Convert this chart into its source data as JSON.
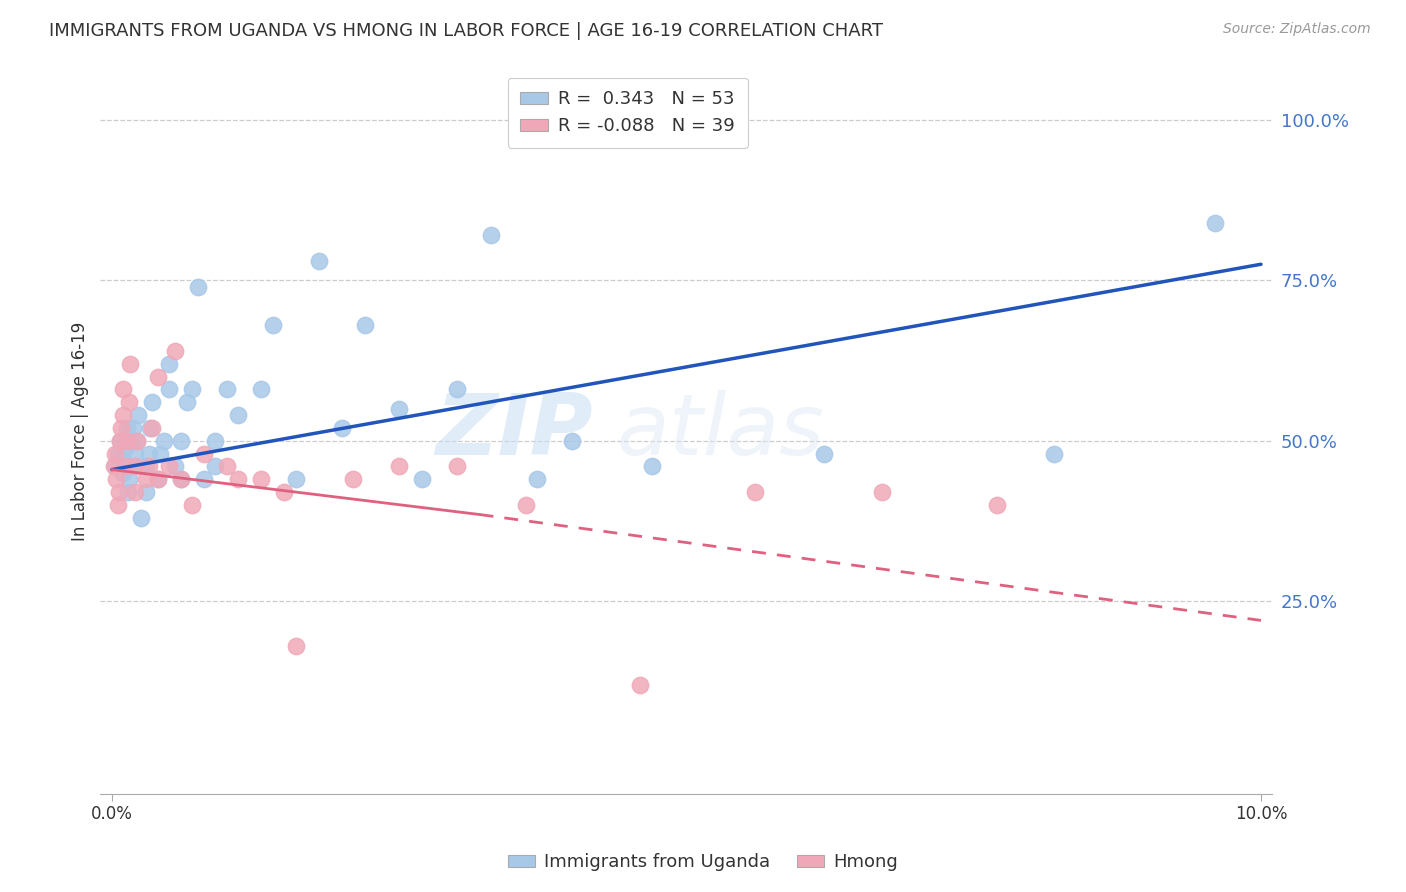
{
  "title": "IMMIGRANTS FROM UGANDA VS HMONG IN LABOR FORCE | AGE 16-19 CORRELATION CHART",
  "source": "Source: ZipAtlas.com",
  "ylabel": "In Labor Force | Age 16-19",
  "y_tick_labels": [
    "25.0%",
    "50.0%",
    "75.0%",
    "100.0%"
  ],
  "y_ticks": [
    0.25,
    0.5,
    0.75,
    1.0
  ],
  "xlim": [
    -0.001,
    0.101
  ],
  "ylim": [
    -0.05,
    1.08
  ],
  "uganda_color": "#a8c8e8",
  "hmong_color": "#f0a8b8",
  "uganda_line_color": "#2255bb",
  "hmong_line_color": "#e06080",
  "watermark_zip": "ZIP",
  "watermark_atlas": "atlas",
  "background_color": "#ffffff",
  "grid_color": "#cccccc",
  "uganda_x": [
    0.0003,
    0.0005,
    0.0007,
    0.001,
    0.001,
    0.0012,
    0.0013,
    0.0014,
    0.0015,
    0.0016,
    0.0018,
    0.002,
    0.002,
    0.0022,
    0.0023,
    0.0025,
    0.003,
    0.003,
    0.0032,
    0.0033,
    0.0035,
    0.004,
    0.0042,
    0.0045,
    0.005,
    0.005,
    0.0055,
    0.006,
    0.006,
    0.0065,
    0.007,
    0.0075,
    0.008,
    0.009,
    0.009,
    0.01,
    0.011,
    0.013,
    0.014,
    0.016,
    0.018,
    0.02,
    0.022,
    0.025,
    0.027,
    0.03,
    0.033,
    0.037,
    0.04,
    0.047,
    0.062,
    0.082,
    0.096
  ],
  "uganda_y": [
    0.46,
    0.48,
    0.5,
    0.45,
    0.47,
    0.49,
    0.52,
    0.42,
    0.44,
    0.5,
    0.52,
    0.46,
    0.48,
    0.5,
    0.54,
    0.38,
    0.42,
    0.46,
    0.48,
    0.52,
    0.56,
    0.44,
    0.48,
    0.5,
    0.58,
    0.62,
    0.46,
    0.44,
    0.5,
    0.56,
    0.58,
    0.74,
    0.44,
    0.5,
    0.46,
    0.58,
    0.54,
    0.58,
    0.68,
    0.44,
    0.78,
    0.52,
    0.68,
    0.55,
    0.44,
    0.58,
    0.82,
    0.44,
    0.5,
    0.46,
    0.48,
    0.48,
    0.84
  ],
  "hmong_x": [
    0.0002,
    0.0003,
    0.0004,
    0.0005,
    0.0006,
    0.0007,
    0.0008,
    0.001,
    0.001,
    0.0012,
    0.0013,
    0.0015,
    0.0016,
    0.002,
    0.002,
    0.0022,
    0.003,
    0.0032,
    0.0035,
    0.004,
    0.004,
    0.005,
    0.0055,
    0.006,
    0.007,
    0.008,
    0.01,
    0.011,
    0.013,
    0.015,
    0.016,
    0.021,
    0.025,
    0.03,
    0.036,
    0.046,
    0.056,
    0.067,
    0.077
  ],
  "hmong_y": [
    0.46,
    0.48,
    0.44,
    0.4,
    0.42,
    0.5,
    0.52,
    0.54,
    0.58,
    0.46,
    0.5,
    0.56,
    0.62,
    0.42,
    0.46,
    0.5,
    0.44,
    0.46,
    0.52,
    0.44,
    0.6,
    0.46,
    0.64,
    0.44,
    0.4,
    0.48,
    0.46,
    0.44,
    0.44,
    0.42,
    0.18,
    0.44,
    0.46,
    0.46,
    0.4,
    0.12,
    0.42,
    0.42,
    0.4
  ],
  "uganda_line_x0": 0.0,
  "uganda_line_y0": 0.455,
  "uganda_line_x1": 0.1,
  "uganda_line_y1": 0.775,
  "hmong_line_x0": 0.0,
  "hmong_line_y0": 0.455,
  "hmong_line_solid_x1": 0.032,
  "hmong_line_solid_y1": 0.385,
  "hmong_line_x1": 0.1,
  "hmong_line_y1": 0.22
}
